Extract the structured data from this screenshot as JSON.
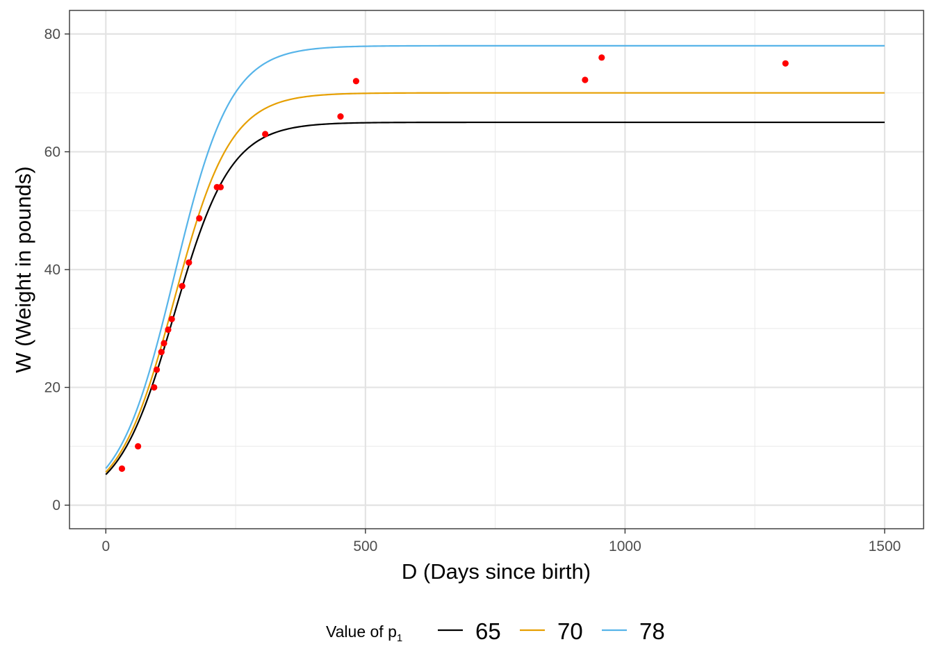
{
  "chart_data": {
    "type": "line",
    "title": "",
    "xlabel": "D (Days since birth)",
    "ylabel": "W (Weight in pounds)",
    "xlim": [
      -70,
      1575
    ],
    "ylim": [
      -4,
      84
    ],
    "x_ticks": [
      0,
      500,
      1000,
      1500
    ],
    "x_tick_labels": [
      "0",
      "500",
      "1000",
      "1500"
    ],
    "y_ticks": [
      0,
      20,
      40,
      60,
      80
    ],
    "y_tick_labels": [
      "0",
      "20",
      "40",
      "60",
      "80"
    ],
    "grid": true,
    "legend": {
      "title_text": "Value of p",
      "title_subscript": "1",
      "position": "bottom"
    },
    "curve_model": {
      "form": "logistic",
      "x_range": [
        0,
        1500
      ],
      "a": 11.5,
      "b": 0.0185
    },
    "series": [
      {
        "name": "65",
        "p1": 65,
        "color": "#000000"
      },
      {
        "name": "70",
        "p1": 70,
        "color": "#E69F00"
      },
      {
        "name": "78",
        "p1": 78,
        "color": "#56B4E9"
      }
    ],
    "points": {
      "color": "#ff0000",
      "data": [
        {
          "x": 31,
          "y": 6.2
        },
        {
          "x": 62,
          "y": 10.0
        },
        {
          "x": 93,
          "y": 20.0
        },
        {
          "x": 98,
          "y": 23.0
        },
        {
          "x": 107,
          "y": 26.0
        },
        {
          "x": 112,
          "y": 27.5
        },
        {
          "x": 120,
          "y": 29.8
        },
        {
          "x": 127,
          "y": 31.6
        },
        {
          "x": 147,
          "y": 37.2
        },
        {
          "x": 160,
          "y": 41.2
        },
        {
          "x": 180,
          "y": 48.7
        },
        {
          "x": 214,
          "y": 54.0
        },
        {
          "x": 221,
          "y": 54.0
        },
        {
          "x": 307,
          "y": 63.0
        },
        {
          "x": 452,
          "y": 66.0
        },
        {
          "x": 482,
          "y": 72.0
        },
        {
          "x": 923,
          "y": 72.2
        },
        {
          "x": 955,
          "y": 76.0
        },
        {
          "x": 1309,
          "y": 75.0
        }
      ]
    }
  }
}
